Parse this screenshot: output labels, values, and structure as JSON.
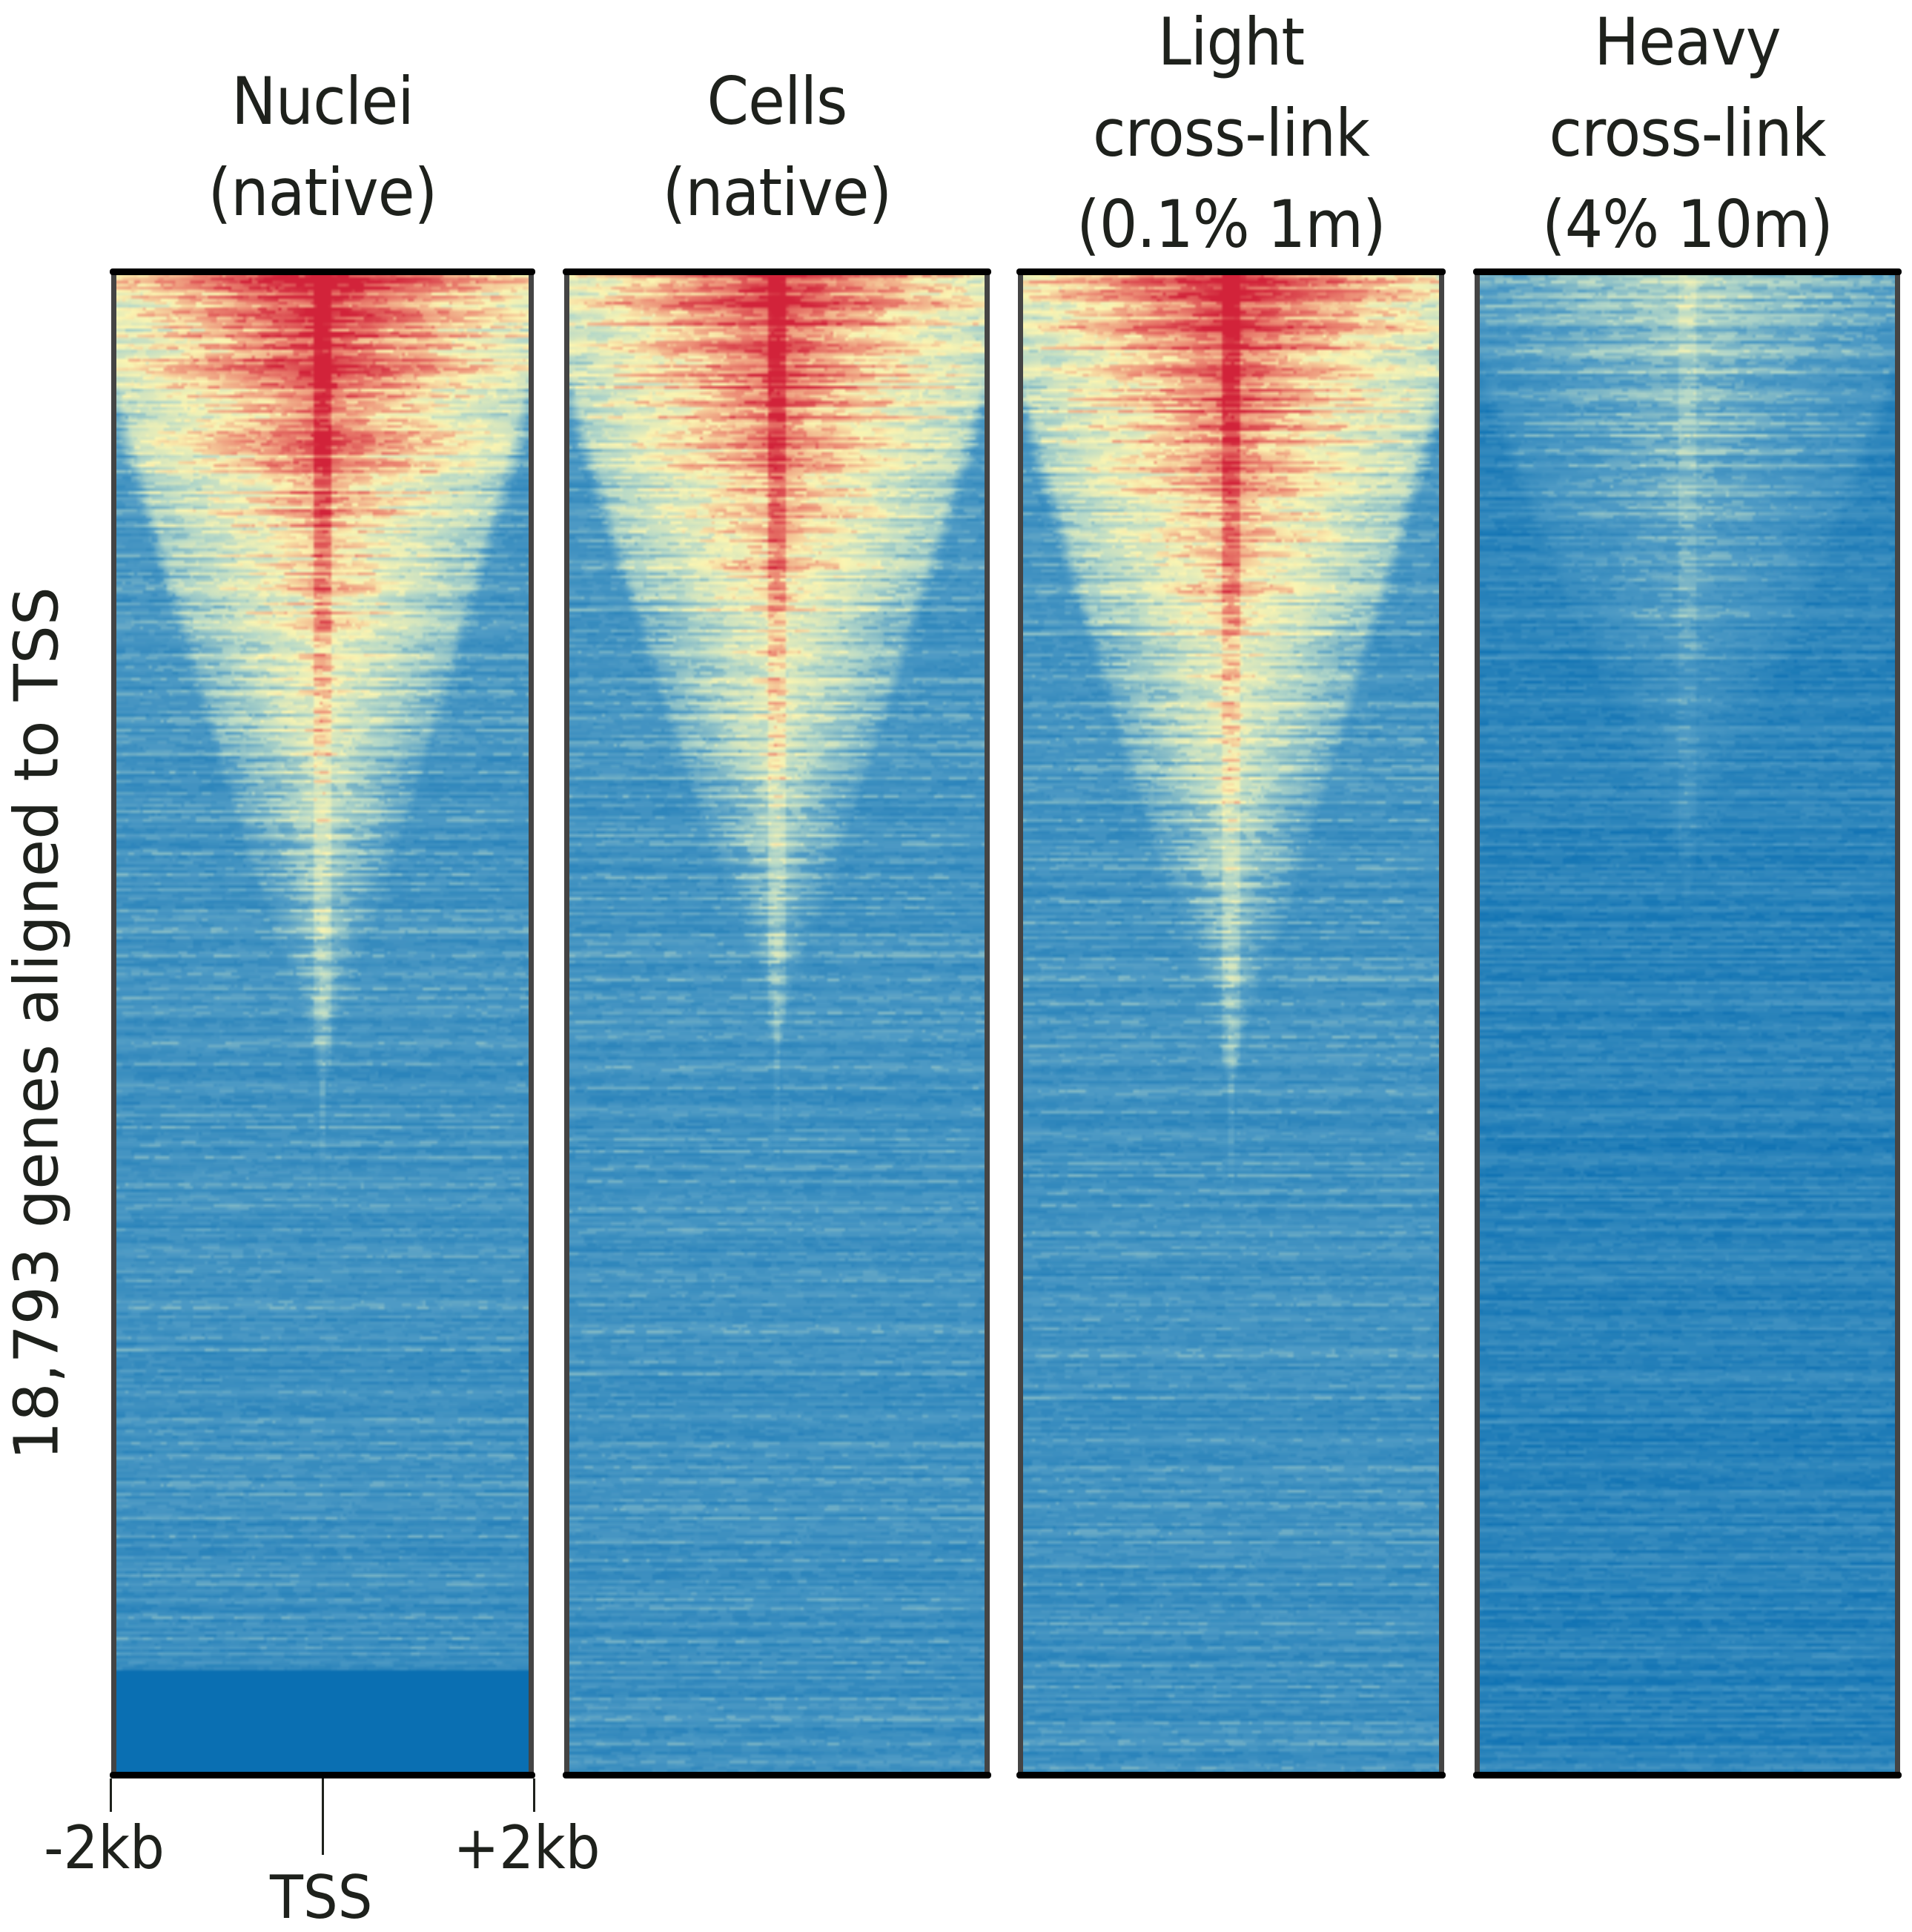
{
  "chart_data": {
    "type": "heatmap",
    "title": "",
    "ylabel": "18,793 genes aligned to TSS",
    "xlabel": "",
    "x_ticks": [
      "-2kb",
      "TSS",
      "+2kb"
    ],
    "x_range_kb": [
      -2,
      2
    ],
    "n_rows": 18793,
    "row_order": "sorted by signal, descending",
    "colormap": {
      "name": "RdYlBu_r",
      "stops": [
        {
          "v": 0.0,
          "color": "#0a6fb2"
        },
        {
          "v": 0.35,
          "color": "#4f9bc5"
        },
        {
          "v": 0.55,
          "color": "#b7d9c8"
        },
        {
          "v": 0.7,
          "color": "#fbf5b2"
        },
        {
          "v": 0.85,
          "color": "#ec8a74"
        },
        {
          "v": 1.0,
          "color": "#d2233a"
        }
      ]
    },
    "panels": [
      {
        "title_lines": [
          "Nuclei",
          "(native)"
        ],
        "peak_signal": 1.0,
        "signal_extent_fraction_of_rows": 0.55,
        "red_extent_fraction_of_rows": 0.45,
        "blank_bottom_fraction": 0.07,
        "tss_line": "strong"
      },
      {
        "title_lines": [
          "Cells",
          "(native)"
        ],
        "peak_signal": 1.0,
        "signal_extent_fraction_of_rows": 0.52,
        "red_extent_fraction_of_rows": 0.45,
        "blank_bottom_fraction": 0.0,
        "tss_line": "strong"
      },
      {
        "title_lines": [
          "Light",
          "cross-link",
          "(0.1% 1m)"
        ],
        "peak_signal": 1.0,
        "signal_extent_fraction_of_rows": 0.55,
        "red_extent_fraction_of_rows": 0.45,
        "blank_bottom_fraction": 0.0,
        "tss_line": "strong"
      },
      {
        "title_lines": [
          "Heavy",
          "cross-link",
          "(4% 10m)"
        ],
        "peak_signal": 0.55,
        "signal_extent_fraction_of_rows": 0.42,
        "red_extent_fraction_of_rows": 0.0,
        "blank_bottom_fraction": 0.0,
        "tss_line": "weak"
      }
    ]
  }
}
